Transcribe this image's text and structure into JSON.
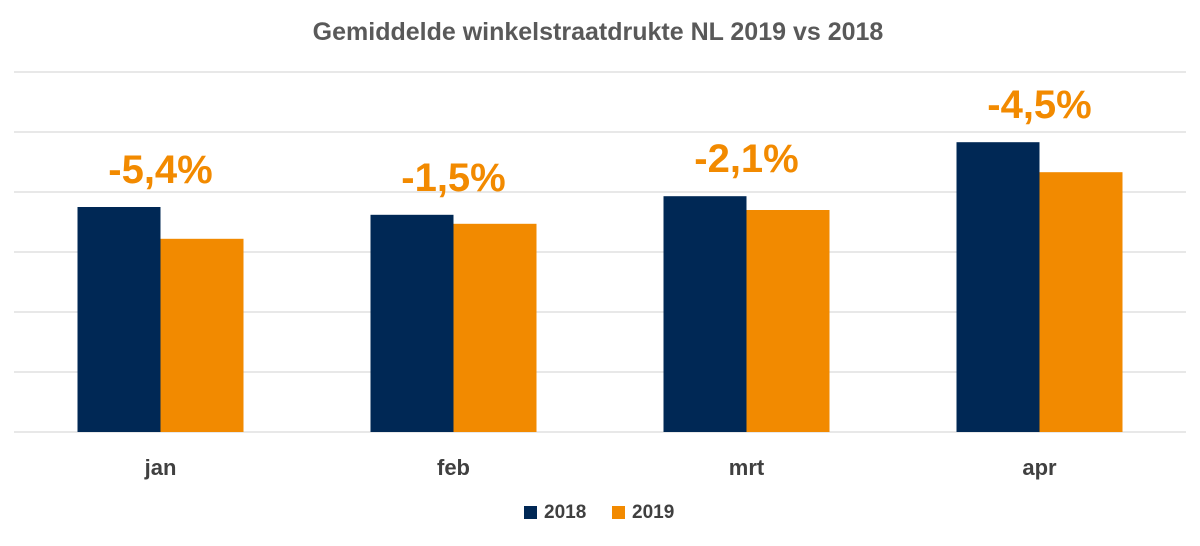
{
  "chart_data": {
    "type": "bar",
    "title": "Gemiddelde winkelstraatdrukte NL 2019 vs 2018",
    "categories": [
      "jan",
      "feb",
      "mrt",
      "apr"
    ],
    "series": [
      {
        "name": "2018",
        "color": "#002855",
        "values": [
          3.75,
          3.62,
          3.93,
          4.83
        ]
      },
      {
        "name": "2019",
        "color": "#f28a00",
        "values": [
          3.22,
          3.47,
          3.7,
          4.33
        ]
      }
    ],
    "annotations": [
      "-5,4%",
      "-1,5%",
      "-2,1%",
      "-4,5%"
    ],
    "annotation_color": "#f28a00",
    "ylim": [
      0,
      6
    ],
    "y_axis_labels_visible": false,
    "grid": true,
    "legend": "bottom-center",
    "xlabel": "",
    "ylabel": ""
  }
}
